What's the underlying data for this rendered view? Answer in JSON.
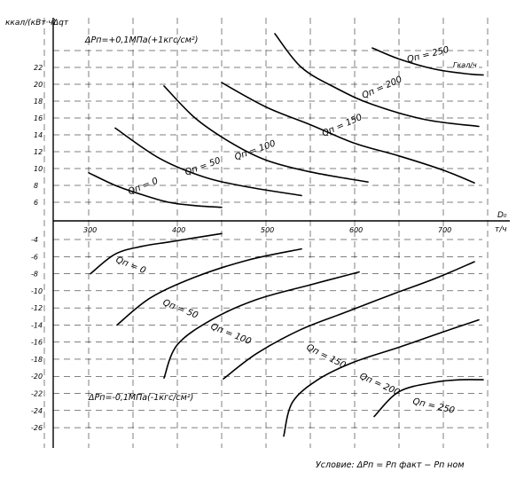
{
  "chart_data": [
    {
      "type": "line",
      "panel": "upper",
      "annotation": "ΔPп=+0,1МПа(+1кгс/см²)",
      "ylabel_unit": "ккал/(кВт·ч)",
      "ylabel_symbol": "Δqт",
      "xlabel_symbol": "D₀",
      "xlabel_unit": "т/ч",
      "xlim": [
        250,
        755
      ],
      "ylim": [
        4,
        25
      ],
      "x_ticks": [
        300,
        400,
        500,
        600,
        700
      ],
      "y_ticks": [
        6,
        8,
        10,
        12,
        14,
        16,
        18,
        20,
        22
      ],
      "grid": true,
      "series": [
        {
          "name": "Qп=0",
          "label": "Qп = 0",
          "x": [
            300,
            330,
            360,
            390,
            420,
            450
          ],
          "y": [
            9.5,
            8.0,
            6.9,
            6.0,
            5.6,
            5.4
          ]
        },
        {
          "name": "Qп=50",
          "label": "Qп = 50",
          "x": [
            330,
            380,
            430,
            480,
            540
          ],
          "y": [
            14.8,
            11.2,
            9.0,
            7.8,
            6.8
          ]
        },
        {
          "name": "Qп=100",
          "label": "Qп = 100",
          "x": [
            385,
            420,
            460,
            500,
            550,
            615
          ],
          "y": [
            19.8,
            16.0,
            13.1,
            11.0,
            9.6,
            8.4
          ]
        },
        {
          "name": "Qп=150",
          "label": "Qп = 150",
          "x": [
            450,
            500,
            550,
            600,
            650,
            700,
            735
          ],
          "y": [
            20.2,
            17.3,
            15.2,
            13.0,
            11.5,
            9.8,
            8.3
          ]
        },
        {
          "name": "Qп=200",
          "label": "Qп = 200",
          "x": [
            510,
            540,
            580,
            620,
            680,
            740
          ],
          "y": [
            26.0,
            22.0,
            19.5,
            17.6,
            15.8,
            15.0
          ]
        },
        {
          "name": "Qп=250",
          "label": "Qп = 250",
          "unit": "Гкал/ч",
          "x": [
            620,
            650,
            690,
            730,
            745
          ],
          "y": [
            24.3,
            23.0,
            21.8,
            21.2,
            21.1
          ]
        }
      ]
    },
    {
      "type": "line",
      "panel": "lower",
      "annotation": "ΔPп=-0,1МПа(-1кгс/см²)",
      "xlim": [
        250,
        755
      ],
      "ylim": [
        -28,
        -2
      ],
      "y_ticks": [
        -4,
        -6,
        -8,
        -10,
        -12,
        -14,
        -16,
        -18,
        -20,
        -22,
        -24,
        -26
      ],
      "grid": true,
      "series": [
        {
          "name": "Qп=0",
          "label": "Qп = 0",
          "x": [
            302,
            330,
            360,
            390,
            420,
            450
          ],
          "y": [
            -8.0,
            -5.7,
            -4.8,
            -4.3,
            -3.8,
            -3.3
          ]
        },
        {
          "name": "Qп=50",
          "label": "Qп = 50",
          "x": [
            332,
            370,
            420,
            480,
            540
          ],
          "y": [
            -14.0,
            -10.8,
            -8.4,
            -6.4,
            -5.1
          ]
        },
        {
          "name": "Qп=100",
          "label": "Qп = 100",
          "x": [
            385,
            400,
            440,
            490,
            550,
            605
          ],
          "y": [
            -20.2,
            -16.3,
            -13.3,
            -11.0,
            -9.3,
            -7.8
          ]
        },
        {
          "name": "Qп=150",
          "label": "Qп = 150",
          "x": [
            452,
            490,
            540,
            590,
            640,
            690,
            735
          ],
          "y": [
            -20.3,
            -17.3,
            -14.5,
            -12.5,
            -10.5,
            -8.6,
            -6.6
          ]
        },
        {
          "name": "Qп=200",
          "label": "Qп = 200",
          "x": [
            520,
            530,
            560,
            600,
            650,
            700,
            740
          ],
          "y": [
            -27.0,
            -23.0,
            -20.3,
            -18.3,
            -16.6,
            -14.8,
            -13.4
          ]
        },
        {
          "name": "Qп=250",
          "label": "Qп = 250",
          "x": [
            622,
            650,
            690,
            720,
            745
          ],
          "y": [
            -24.7,
            -21.8,
            -20.7,
            -20.4,
            -20.4
          ]
        }
      ]
    }
  ],
  "condition_note": "Условие:  ΔPп = Pп факт − Pп ном"
}
